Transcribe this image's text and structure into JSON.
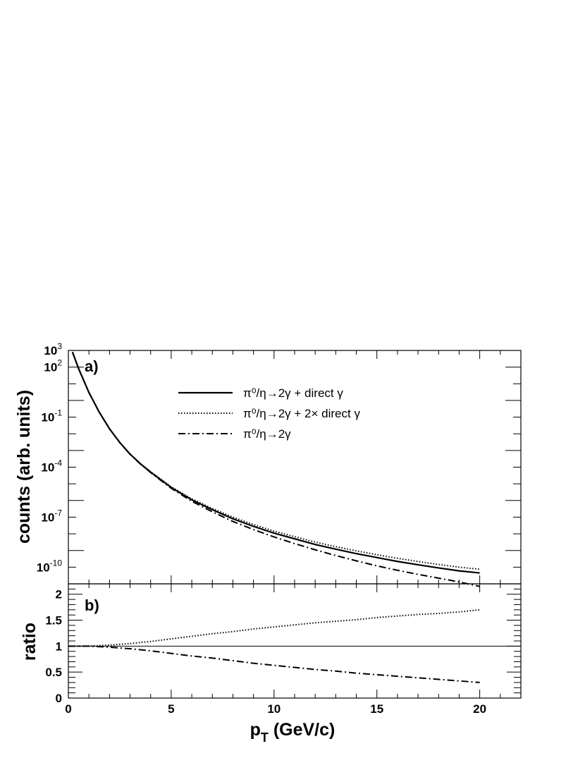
{
  "chart_data": [
    {
      "panel_label": "a)",
      "type": "line",
      "ylabel": "counts (arb. units)",
      "yscale": "log",
      "xlim": [
        0,
        22
      ],
      "ylim_exponent": [
        -11,
        3
      ],
      "y_ticks": [
        {
          "base": "10",
          "exp": "3",
          "value": 1000
        },
        {
          "base": "10",
          "exp": "2",
          "value": 100
        },
        {
          "base": "10",
          "exp": "-1",
          "value": 0.1
        },
        {
          "base": "10",
          "exp": "-4",
          "value": 0.0001
        },
        {
          "base": "10",
          "exp": "-7",
          "value": 1e-07
        },
        {
          "base": "10",
          "exp": "-10",
          "value": 1e-10
        }
      ],
      "legend": [
        {
          "label": "π⁰/η→2γ + direct γ",
          "style": "solid"
        },
        {
          "label": "π⁰/η→2γ + 2× direct γ",
          "style": "dotted"
        },
        {
          "label": "π⁰/η→2γ",
          "style": "dashdot"
        }
      ],
      "series": [
        {
          "name": "π⁰/η→2γ + direct γ",
          "style": "solid",
          "x": [
            0.2,
            0.5,
            1,
            1.5,
            2,
            2.5,
            3,
            3.5,
            4,
            5,
            6,
            7,
            8,
            9,
            10,
            11,
            12,
            13,
            14,
            15,
            16,
            17,
            18,
            19,
            20
          ],
          "y": [
            800,
            80,
            3,
            0.2,
            0.02,
            0.003,
            0.0006,
            0.00016,
            5e-05,
            6e-06,
            1.1e-06,
            2.8e-07,
            8e-08,
            2.8e-08,
            1.1e-08,
            5e-09,
            2.3e-09,
            1.2e-09,
            6.5e-10,
            3.8e-10,
            2.2e-10,
            1.4e-10,
            9e-11,
            6e-11,
            4.5e-11
          ]
        },
        {
          "name": "π⁰/η→2γ + 2× direct γ",
          "style": "dotted",
          "x": [
            0.2,
            0.5,
            1,
            1.5,
            2,
            2.5,
            3,
            3.5,
            4,
            5,
            6,
            7,
            8,
            9,
            10,
            11,
            12,
            13,
            14,
            15,
            16,
            17,
            18,
            19,
            20
          ],
          "y": [
            800,
            80,
            3,
            0.2,
            0.02,
            0.003,
            0.00061,
            0.000165,
            5.3e-05,
            6.6e-06,
            1.25e-06,
            3.3e-07,
            1e-07,
            3.6e-08,
            1.45e-08,
            6.7e-09,
            3.2e-09,
            1.7e-09,
            9.5e-10,
            5.6e-10,
            3.4e-10,
            2.2e-10,
            1.45e-10,
            1e-10,
            7.5e-11
          ]
        },
        {
          "name": "π⁰/η→2γ",
          "style": "dashdot",
          "x": [
            0.2,
            0.5,
            1,
            1.5,
            2,
            2.5,
            3,
            3.5,
            4,
            5,
            6,
            7,
            8,
            9,
            10,
            11,
            12,
            13,
            14,
            15,
            16,
            17,
            18,
            19,
            20
          ],
          "y": [
            800,
            80,
            3,
            0.2,
            0.02,
            0.003,
            0.00058,
            0.000155,
            4.7e-05,
            5.4e-06,
            9e-07,
            2.1e-07,
            5.5e-08,
            1.8e-08,
            6.5e-09,
            2.6e-09,
            1.1e-09,
            5e-10,
            2.4e-10,
            1.2e-10,
            6.5e-11,
            3.7e-11,
            2.2e-11,
            1.3e-11,
            7e-12
          ]
        }
      ]
    },
    {
      "panel_label": "b)",
      "type": "line",
      "ylabel": "ratio",
      "xlabel": "p",
      "xlabel_sub": "T",
      "xlabel_rest": " (GeV/c)",
      "xlim": [
        0,
        22
      ],
      "ylim": [
        0,
        2.2
      ],
      "x_ticks": [
        "0",
        "5",
        "10",
        "15",
        "20"
      ],
      "y_ticks": [
        "0",
        "0.5",
        "1",
        "1.5",
        "2"
      ],
      "reference_line": 1,
      "series": [
        {
          "name": "",
          "style": "dotted",
          "x": [
            0,
            1,
            2,
            3,
            4,
            5,
            6,
            7,
            8,
            9,
            10,
            11,
            12,
            13,
            14,
            15,
            16,
            17,
            18,
            19,
            20
          ],
          "y": [
            1.0,
            1.0,
            1.02,
            1.05,
            1.09,
            1.14,
            1.19,
            1.24,
            1.28,
            1.33,
            1.37,
            1.41,
            1.45,
            1.48,
            1.51,
            1.55,
            1.58,
            1.61,
            1.63,
            1.66,
            1.7
          ]
        },
        {
          "name": "",
          "style": "dashdot",
          "x": [
            0,
            1,
            2,
            3,
            4,
            5,
            6,
            7,
            8,
            9,
            10,
            11,
            12,
            13,
            14,
            15,
            16,
            17,
            18,
            19,
            20
          ],
          "y": [
            1.0,
            1.0,
            0.98,
            0.95,
            0.91,
            0.86,
            0.81,
            0.77,
            0.72,
            0.67,
            0.63,
            0.59,
            0.55,
            0.52,
            0.48,
            0.45,
            0.42,
            0.39,
            0.36,
            0.33,
            0.3
          ]
        }
      ]
    }
  ]
}
